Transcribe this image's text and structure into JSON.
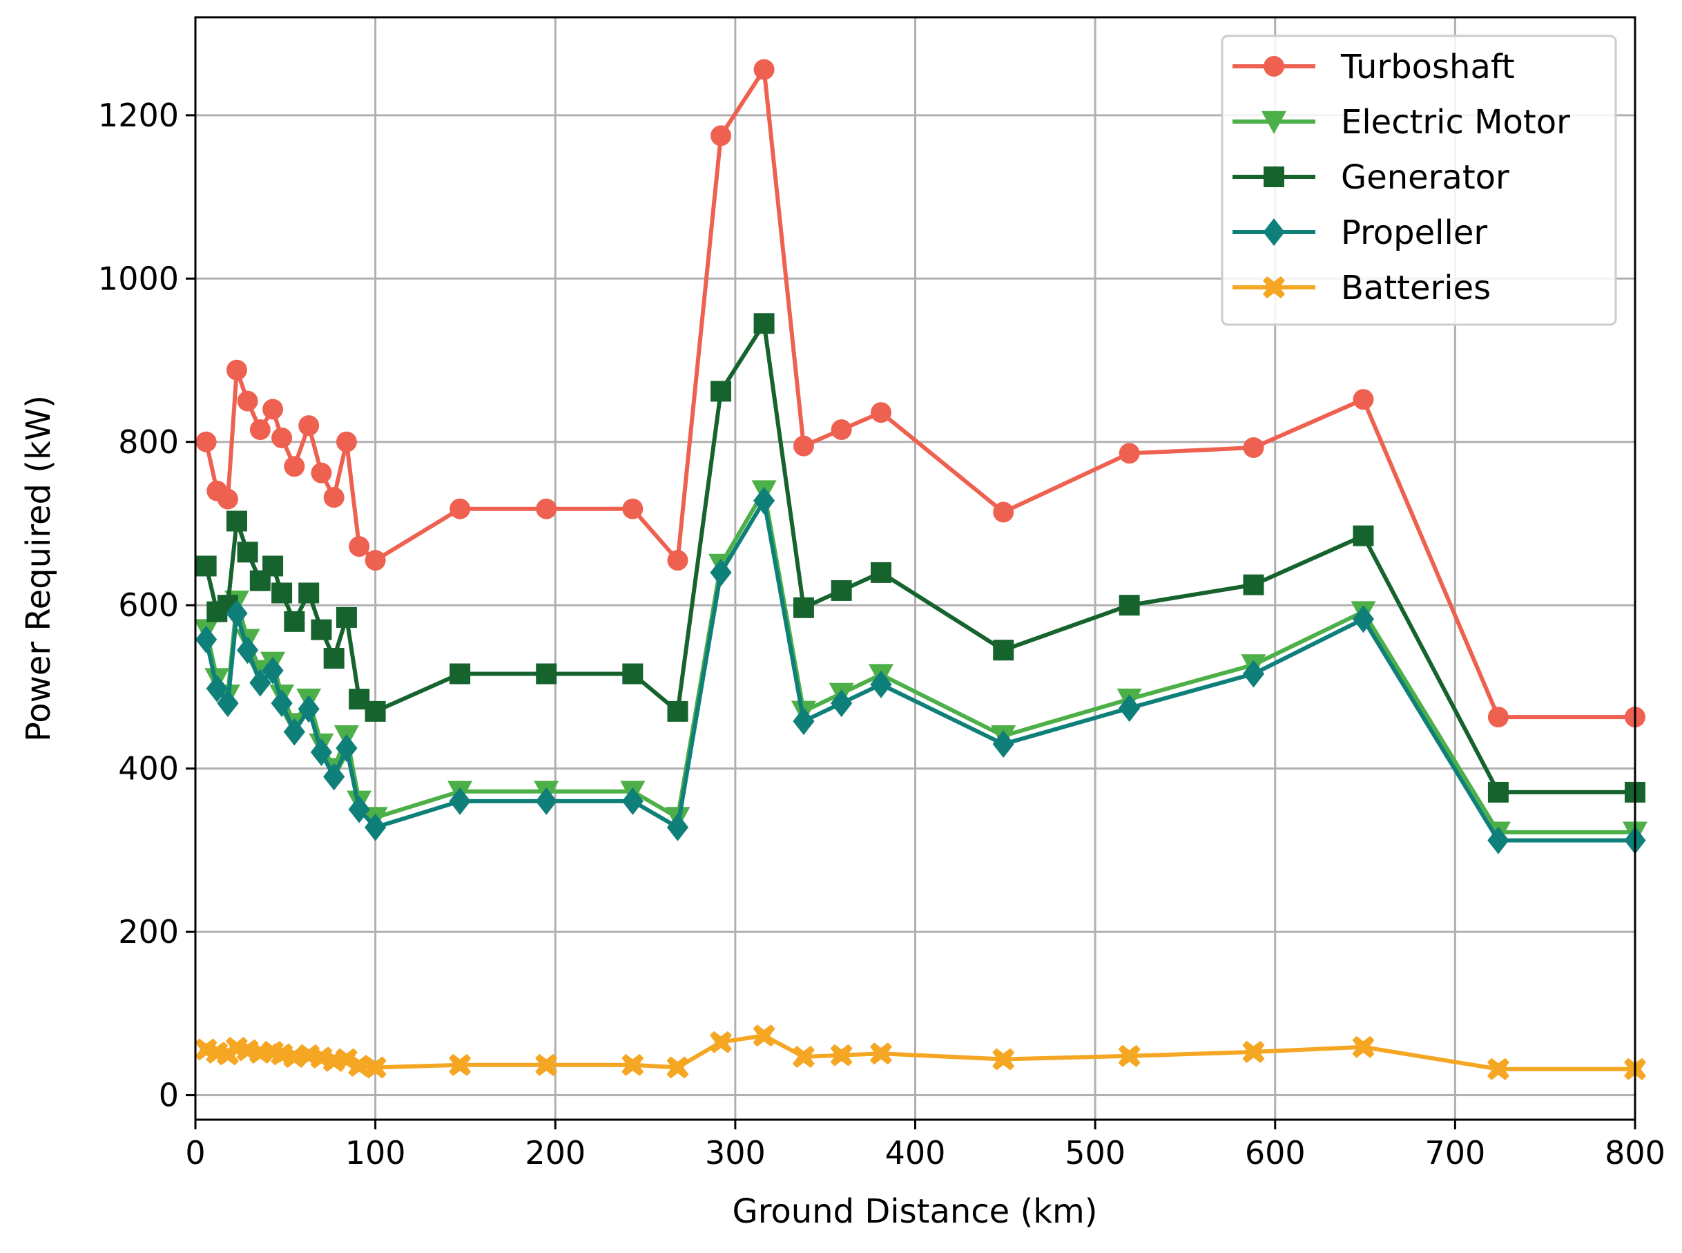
{
  "chart_data": {
    "type": "line",
    "title": "",
    "xlabel": "Ground Distance (km)",
    "ylabel": "Power Required (kW)",
    "xlim": [
      0,
      800
    ],
    "ylim": [
      -30,
      1320
    ],
    "xticks": [
      0,
      100,
      200,
      300,
      400,
      500,
      600,
      700,
      800
    ],
    "yticks": [
      0,
      200,
      400,
      600,
      800,
      1000,
      1200
    ],
    "grid": true,
    "legend_position": "top-right",
    "x": [
      6,
      12,
      18,
      23,
      29,
      36,
      43,
      48,
      55,
      63,
      70,
      77,
      84,
      91,
      100,
      147,
      195,
      243,
      268,
      292,
      316,
      338,
      359,
      381,
      449,
      519,
      588,
      649,
      724,
      800
    ],
    "series": [
      {
        "name": "Turboshaft",
        "color": "#ee6150",
        "marker": "circle",
        "values": [
          800,
          740,
          730,
          888,
          850,
          815,
          840,
          805,
          770,
          820,
          762,
          732,
          800,
          672,
          655,
          718,
          718,
          718,
          655,
          1175,
          1256,
          795,
          815,
          836,
          714,
          786,
          793,
          852,
          463,
          463
        ]
      },
      {
        "name": "Electric Motor",
        "color": "#4daf47",
        "marker": "triangle-down",
        "values": [
          570,
          510,
          490,
          605,
          558,
          520,
          530,
          490,
          455,
          485,
          430,
          400,
          440,
          360,
          340,
          372,
          372,
          372,
          340,
          650,
          740,
          470,
          492,
          515,
          440,
          485,
          527,
          592,
          322,
          322
        ]
      },
      {
        "name": "Generator",
        "color": "#16632e",
        "marker": "square",
        "values": [
          648,
          592,
          600,
          703,
          665,
          630,
          648,
          615,
          580,
          615,
          570,
          535,
          585,
          485,
          470,
          516,
          516,
          516,
          470,
          862,
          945,
          597,
          618,
          640,
          545,
          600,
          625,
          685,
          371,
          371
        ]
      },
      {
        "name": "Propeller",
        "color": "#0f7f7a",
        "marker": "diamond",
        "values": [
          558,
          498,
          480,
          590,
          545,
          505,
          520,
          480,
          445,
          473,
          420,
          390,
          425,
          350,
          328,
          360,
          360,
          360,
          328,
          640,
          728,
          458,
          480,
          503,
          430,
          474,
          516,
          583,
          312,
          312
        ]
      },
      {
        "name": "Batteries",
        "color": "#f5a623",
        "marker": "x-filled",
        "values": [
          56,
          52,
          50,
          58,
          55,
          52,
          53,
          50,
          47,
          49,
          46,
          42,
          44,
          36,
          34,
          37,
          37,
          37,
          34,
          65,
          73,
          47,
          49,
          51,
          44,
          48,
          53,
          59,
          32,
          32
        ]
      }
    ]
  }
}
